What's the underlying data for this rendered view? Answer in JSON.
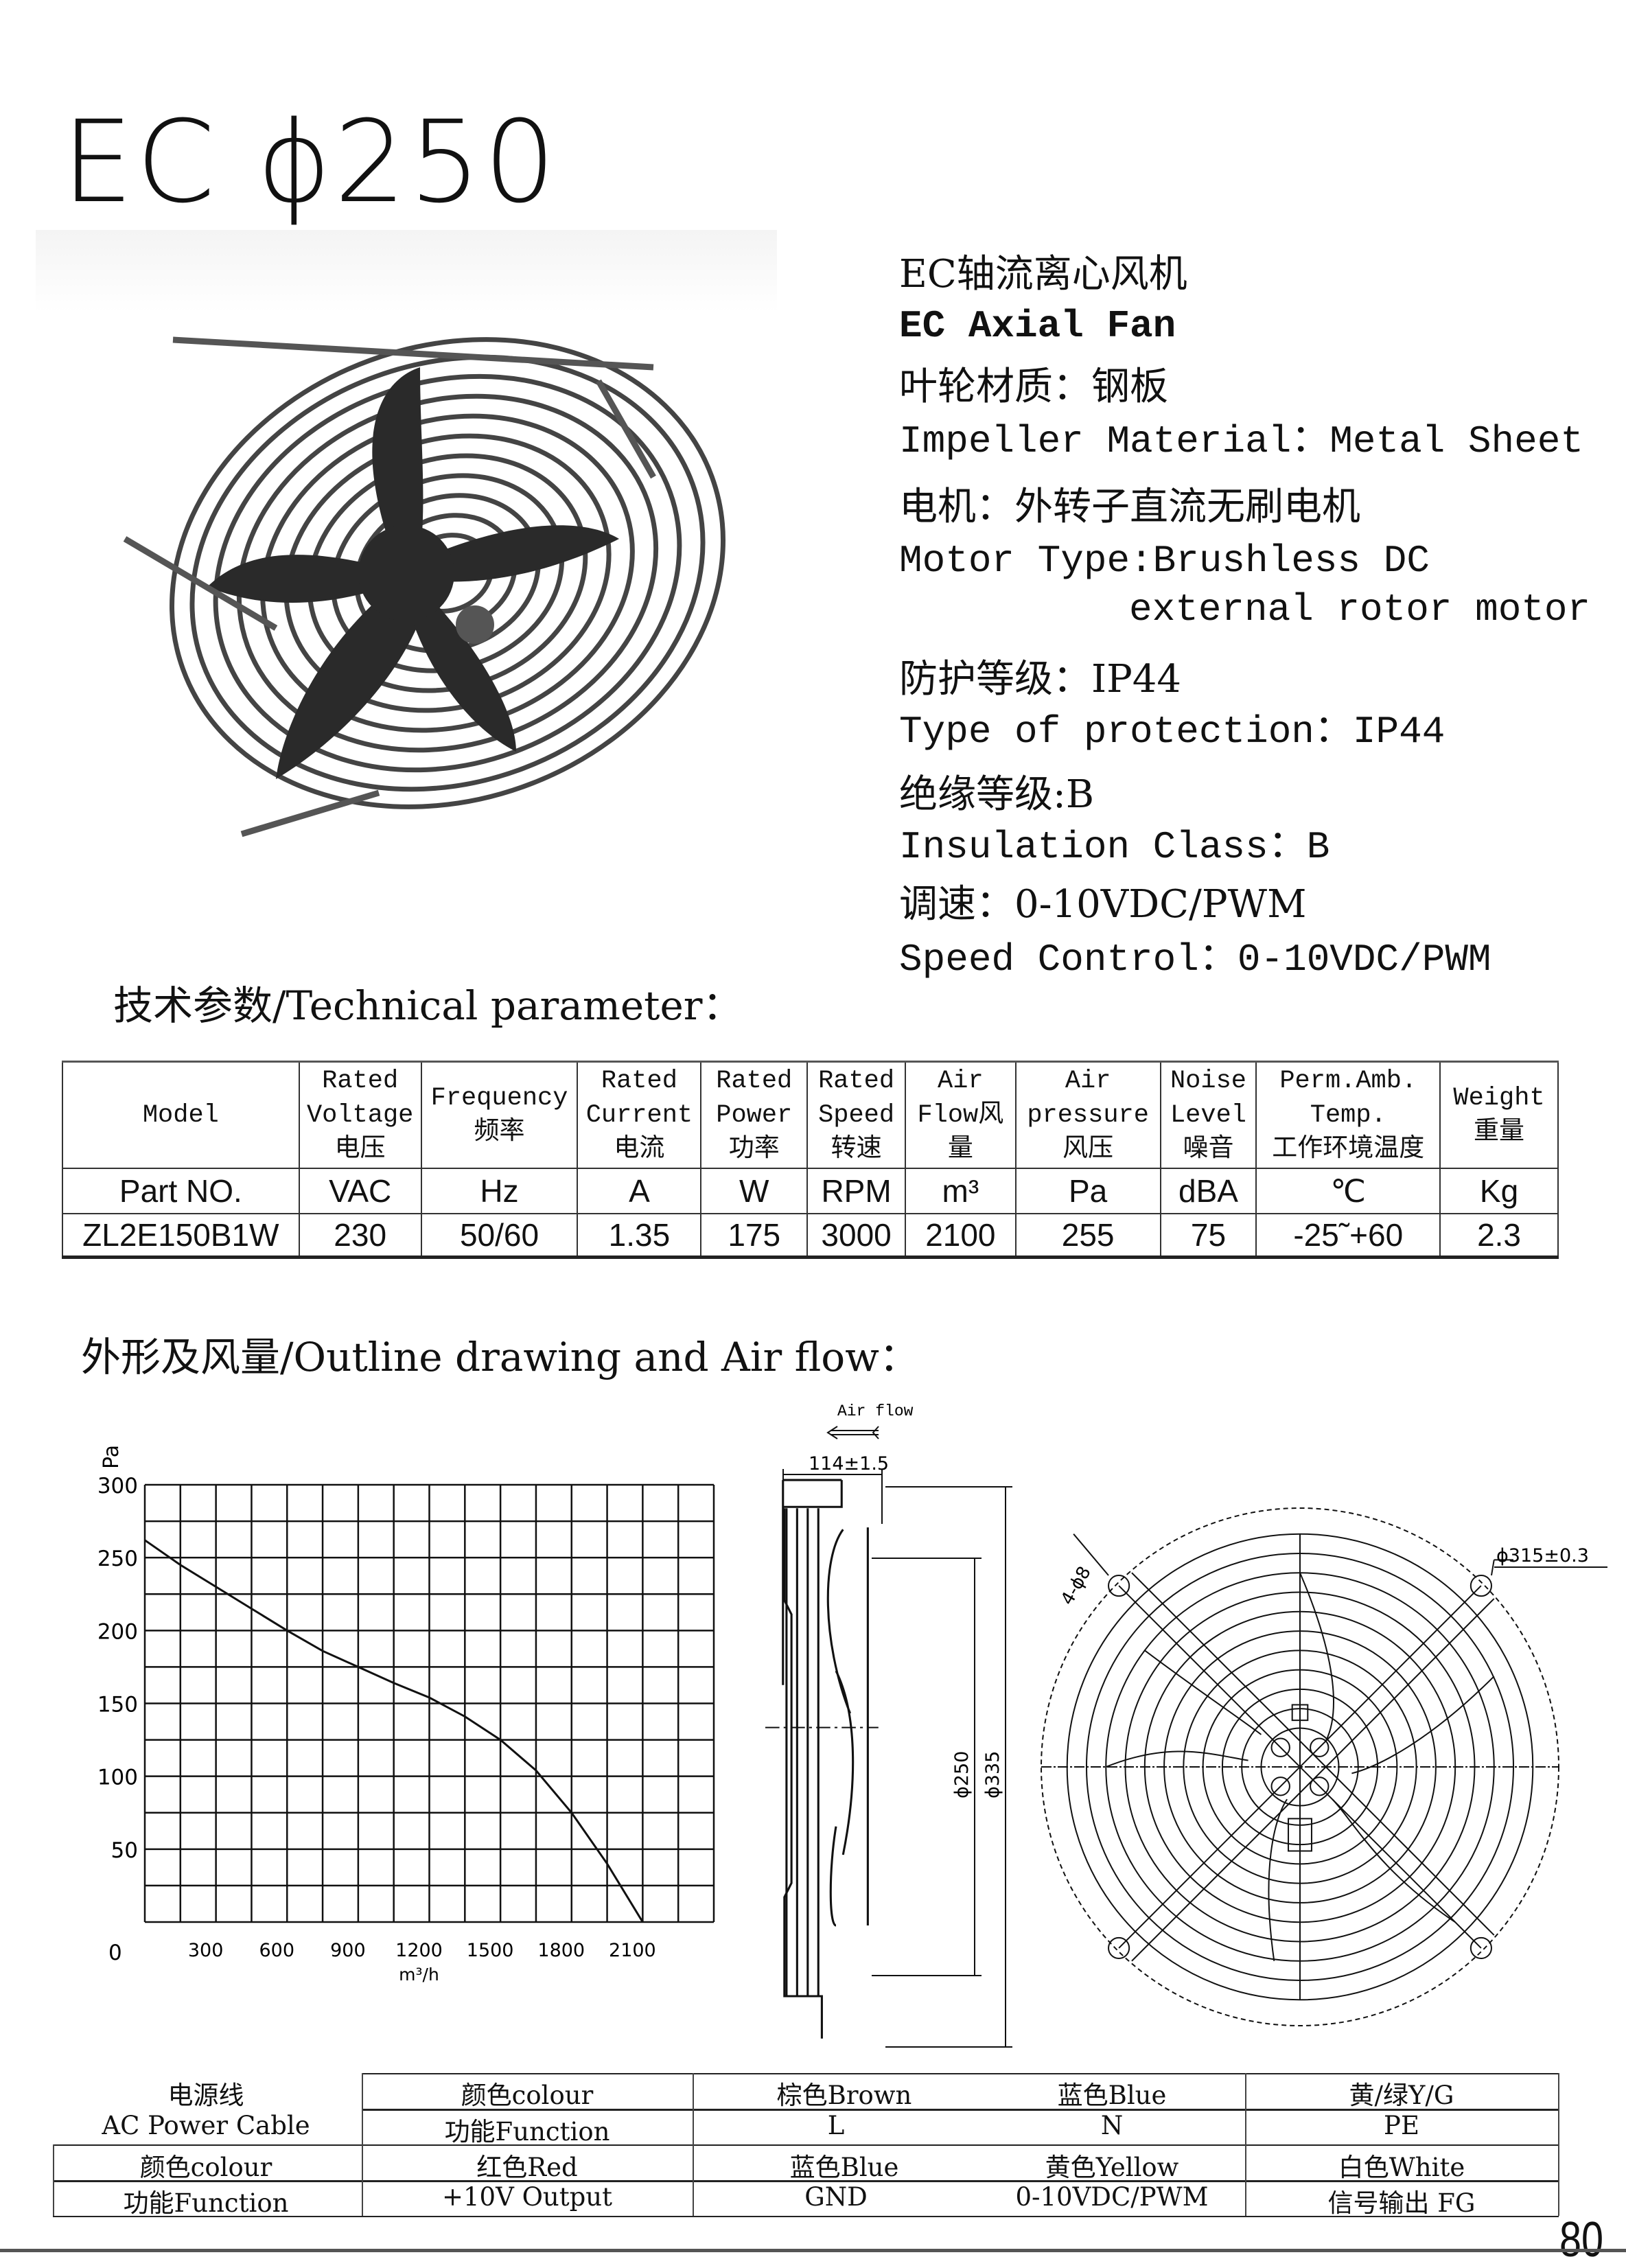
{
  "title": "EC  ϕ250",
  "specs": {
    "name_cn": "EC轴流离心风机",
    "name_en": "EC Axial Fan",
    "impeller_cn": "叶轮材质：钢板",
    "impeller_en": "Impeller Material：Metal Sheet",
    "motor_cn": "电机：外转子直流无刷电机",
    "motor_en_1": "Motor Type:Brushless DC",
    "motor_en_2": "external rotor motor",
    "protection_cn": "防护等级：IP44",
    "protection_en": "Type of protection：IP44",
    "insulation_cn": "绝缘等级:B",
    "insulation_en": "Insulation Class：B",
    "speed_cn": "调速：0-10VDC/PWM",
    "speed_en": "Speed Control：0-10VDC/PWM"
  },
  "tech_heading": "技术参数/Technical parameter：",
  "params_table": {
    "headers": [
      [
        "Model"
      ],
      [
        "Rated",
        "Voltage",
        "电压"
      ],
      [
        "Frequency",
        "频率"
      ],
      [
        "Rated",
        "Current",
        "电流"
      ],
      [
        "Rated",
        "Power",
        "功率"
      ],
      [
        "Rated",
        "Speed",
        "转速"
      ],
      [
        "Air",
        "Flow风",
        "量"
      ],
      [
        "Air",
        "pressure",
        "风压"
      ],
      [
        "Noise",
        "Level",
        "噪音"
      ],
      [
        "Perm.Amb.",
        "Temp.",
        "工作环境温度"
      ],
      [
        "Weight",
        "重量"
      ]
    ],
    "units": [
      "Part NO.",
      "VAC",
      "Hz",
      "A",
      "W",
      "RPM",
      "m³",
      "Pa",
      "dBA",
      "℃",
      "Kg"
    ],
    "values": [
      "ZL2E150B1W",
      "230",
      "50/60",
      "1.35",
      "175",
      "3000",
      "2100",
      "255",
      "75",
      "-25˜+60",
      "2.3"
    ]
  },
  "outline_heading": "外形及风量/Outline drawing and Air flow：",
  "chart_data": {
    "type": "line",
    "xlabel": "m³/h",
    "ylabel": "Pa",
    "xlim": [
      0,
      2400
    ],
    "ylim": [
      0,
      300
    ],
    "xticks": [
      "300",
      "600",
      "900",
      "1200",
      "1500",
      "1800",
      "2100"
    ],
    "yticks": [
      "0",
      "50",
      "100",
      "150",
      "200",
      "250",
      "300"
    ],
    "grid": true,
    "x": [
      0,
      150,
      300,
      450,
      600,
      750,
      900,
      1050,
      1200,
      1350,
      1500,
      1650,
      1800,
      1950,
      2100
    ],
    "y": [
      262,
      245,
      230,
      215,
      200,
      186,
      175,
      164,
      154,
      141,
      125,
      104,
      75,
      40,
      0
    ]
  },
  "drawing": {
    "airflow_label": "Air flow",
    "depth": "114±1.5",
    "dia_impeller": "ϕ250",
    "dia_outer": "ϕ335",
    "holes": "4-ϕ8",
    "hole_circle": "ϕ315±0.3"
  },
  "cable_table": {
    "ac_label_cn": "电源线",
    "ac_label_en": "AC Power Cable",
    "row1": [
      "颜色colour",
      "棕色Brown",
      "蓝色Blue",
      "黄/绿Y/G"
    ],
    "row2": [
      "功能Function",
      "L",
      "N",
      "PE"
    ],
    "row3": [
      "颜色colour",
      "红色Red",
      "蓝色Blue",
      "黄色Yellow",
      "白色White"
    ],
    "row4": [
      "功能Function",
      "+10V Output",
      "GND",
      "0-10VDC/PWM",
      "信号输出 FG"
    ]
  },
  "page_number": "80"
}
